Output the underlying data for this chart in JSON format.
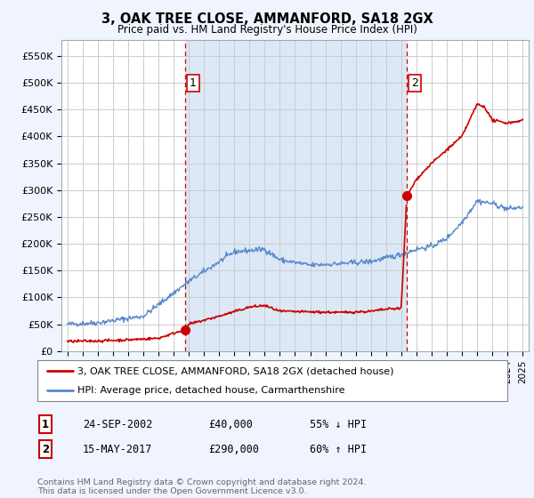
{
  "title": "3, OAK TREE CLOSE, AMMANFORD, SA18 2GX",
  "subtitle": "Price paid vs. HM Land Registry's House Price Index (HPI)",
  "ylabel_ticks": [
    "£0",
    "£50K",
    "£100K",
    "£150K",
    "£200K",
    "£250K",
    "£300K",
    "£350K",
    "£400K",
    "£450K",
    "£500K",
    "£550K"
  ],
  "ytick_values": [
    0,
    50000,
    100000,
    150000,
    200000,
    250000,
    300000,
    350000,
    400000,
    450000,
    500000,
    550000
  ],
  "ylim": [
    0,
    580000
  ],
  "xlim_start": 1994.6,
  "xlim_end": 2025.4,
  "sale1_x": 2002.73,
  "sale1_y": 40000,
  "sale2_x": 2017.37,
  "sale2_y": 290000,
  "legend_line1_label": "3, OAK TREE CLOSE, AMMANFORD, SA18 2GX (detached house)",
  "legend_line1_color": "#cc0000",
  "legend_line2_label": "HPI: Average price, detached house, Carmarthenshire",
  "legend_line2_color": "#5588cc",
  "table_row1": [
    "1",
    "24-SEP-2002",
    "£40,000",
    "55% ↓ HPI"
  ],
  "table_row2": [
    "2",
    "15-MAY-2017",
    "£290,000",
    "60% ↑ HPI"
  ],
  "footer": "Contains HM Land Registry data © Crown copyright and database right 2024.\nThis data is licensed under the Open Government Licence v3.0.",
  "bg_color": "#f0f4ff",
  "plot_bg_color": "#ffffff",
  "shade_color": "#dce8f5",
  "grid_color": "#cccccc",
  "vline_color": "#cc0000"
}
